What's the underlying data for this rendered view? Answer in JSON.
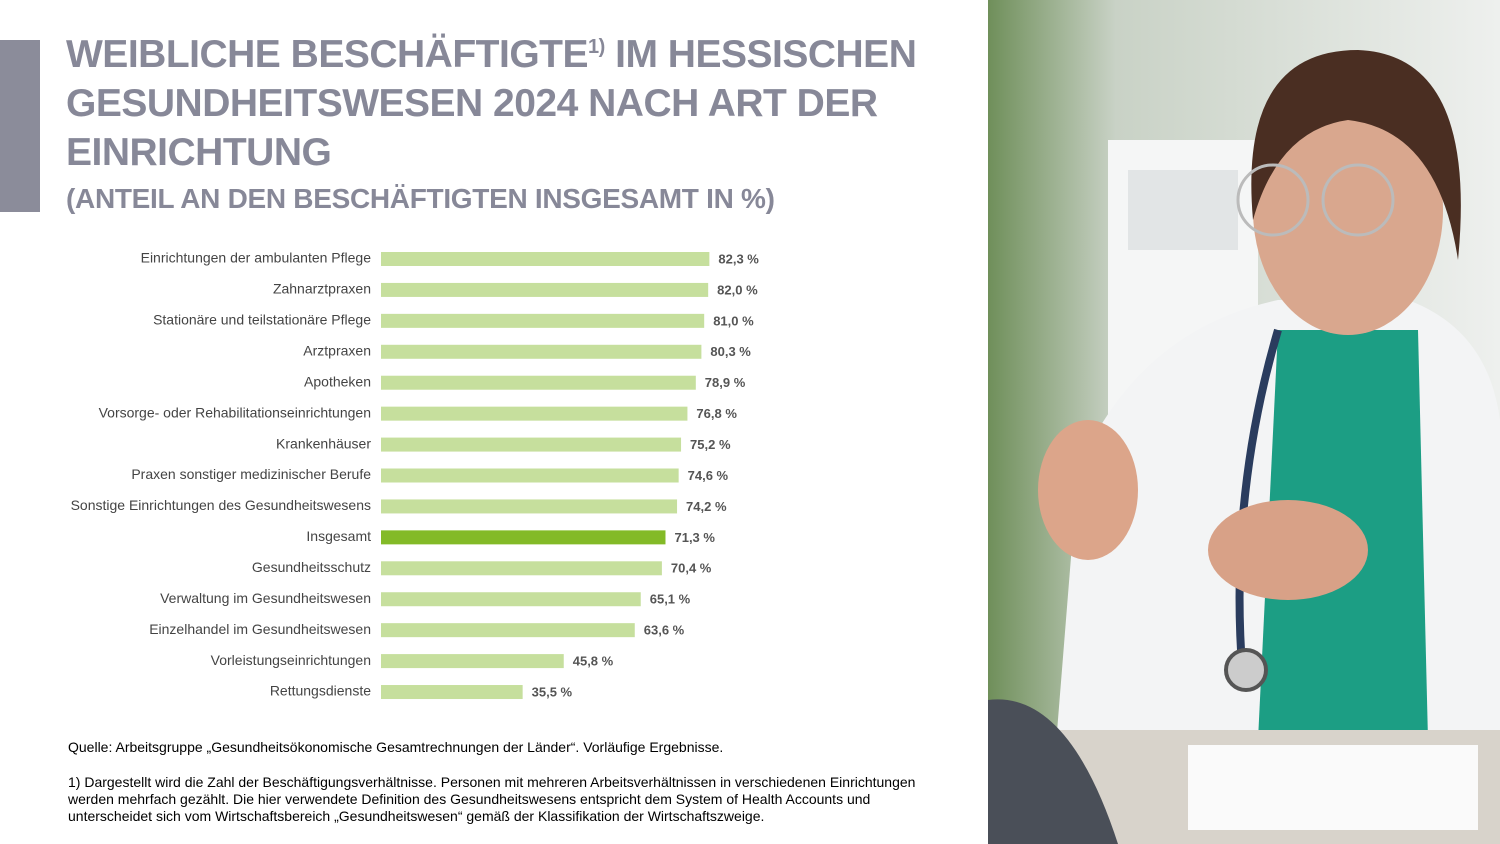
{
  "chart_data": {
    "type": "barh",
    "title": "WEIBLICHE BESCHÄFTIGTE",
    "title_superscript": "1)",
    "title_rest": "IM HESSISCHEN GESUNDHEITSWESEN 2024 NACH ART DER EINRICHTUNG",
    "subtitle": "(ANTEIL AN DEN BESCHÄFTIGTEN INSGESAMT IN %)",
    "categories": [
      "Einrichtungen der ambulanten Pflege",
      "Zahnarztpraxen",
      "Stationäre und teilstationäre Pflege",
      "Arztpraxen",
      "Apotheken",
      "Vorsorge- oder Rehabilitationseinrichtungen",
      "Krankenhäuser",
      "Praxen sonstiger medizinischer Berufe",
      "Sonstige Einrichtungen des Gesundheitswesens",
      "Insgesamt",
      "Gesundheitsschutz",
      "Verwaltung im Gesundheitswesen",
      "Einzelhandel im Gesundheitswesen",
      "Vorleistungseinrichtungen",
      "Rettungsdienste"
    ],
    "values": [
      82.3,
      82.0,
      81.0,
      80.3,
      78.9,
      76.8,
      75.2,
      74.6,
      74.2,
      71.3,
      70.4,
      65.1,
      63.6,
      45.8,
      35.5
    ],
    "value_labels": [
      "82,3 %",
      "82,0 %",
      "81,0 %",
      "80,3 %",
      "78,9 %",
      "76,8 %",
      "75,2 %",
      "74,6 %",
      "74,2 %",
      "71,3 %",
      "70,4 %",
      "65,1 %",
      "63,6 %",
      "45,8 %",
      "35,5 %"
    ],
    "colors": [
      "#c6df9d",
      "#c6df9d",
      "#c6df9d",
      "#c6df9d",
      "#c6df9d",
      "#c6df9d",
      "#c6df9d",
      "#c6df9d",
      "#c6df9d",
      "#83ba27",
      "#c6df9d",
      "#c6df9d",
      "#c6df9d",
      "#c6df9d",
      "#c6df9d"
    ],
    "source": "Quelle: Arbeitsgruppe „Gesundheitsökonomische Gesamtrechnungen der Länder“. Vorläufige Ergebnisse.",
    "footnote": "1) Dargestellt wird die Zahl der Beschäftigungsverhältnisse. Personen mit mehreren Arbeitsverhältnissen in verschiedenen Einrichtungen werden mehrfach gezählt. Die hier verwendete Definition des Gesundheitswesens entspricht dem System of Health Accounts und unterscheidet sich vom Wirtschaftsbereich „Gesundheitswesen“ gemäß der Klassifikation der Wirtschaftszweige."
  }
}
